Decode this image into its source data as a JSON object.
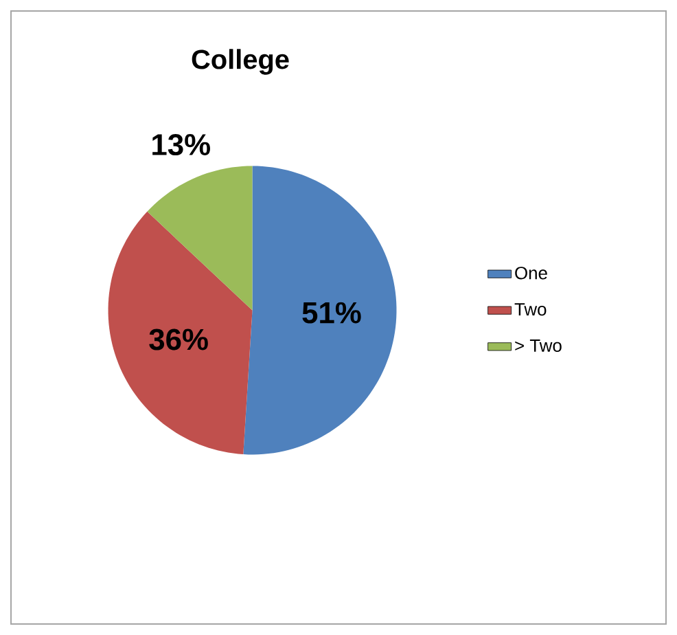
{
  "chart_data": {
    "type": "pie",
    "title": "College",
    "categories": [
      "One",
      "Two",
      "> Two"
    ],
    "values": [
      51,
      36,
      13
    ],
    "colors": [
      "#4f81bd",
      "#c0504d",
      "#9bbb59"
    ],
    "value_labels": [
      "51%",
      "36%",
      "13%"
    ],
    "legend": "right"
  }
}
